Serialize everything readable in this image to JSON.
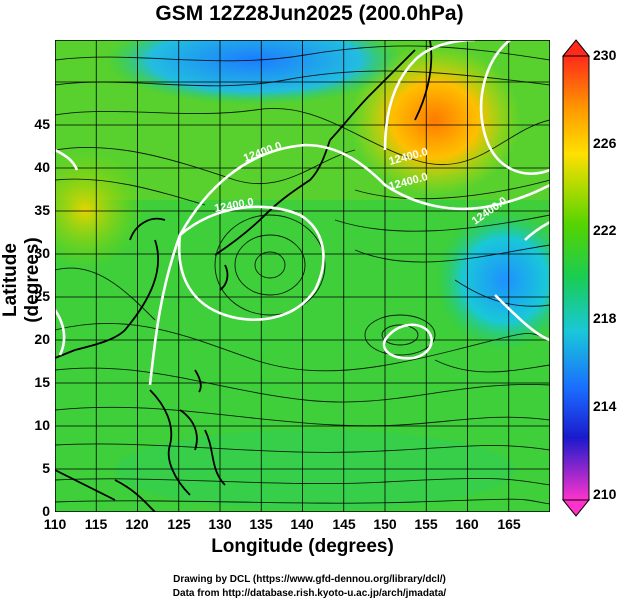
{
  "title": "GSM 12Z28Jun2025 (200.0hPa)",
  "xlabel": "Longitude (degrees)",
  "ylabel": "Latitude  (degrees)",
  "x_ticks": [
    "110",
    "115",
    "120",
    "125",
    "130",
    "135",
    "140",
    "145",
    "150",
    "155",
    "160",
    "165"
  ],
  "y_ticks": [
    "0",
    "5",
    "10",
    "15",
    "20",
    "25",
    "30",
    "35",
    "40",
    "45"
  ],
  "colorbar": {
    "ticks": [
      "230",
      "226",
      "222",
      "218",
      "214",
      "210"
    ]
  },
  "contour_labels": [
    "12400.0",
    "12400.0",
    "12400.0",
    "12400.0",
    "12400.0"
  ],
  "credit_line1": "Drawing by DCL (https://www.gfd-dennou.org/library/dcl/)",
  "credit_line2": "Data from http://database.rish.kyoto-u.ac.jp/arch/jmadata/"
}
